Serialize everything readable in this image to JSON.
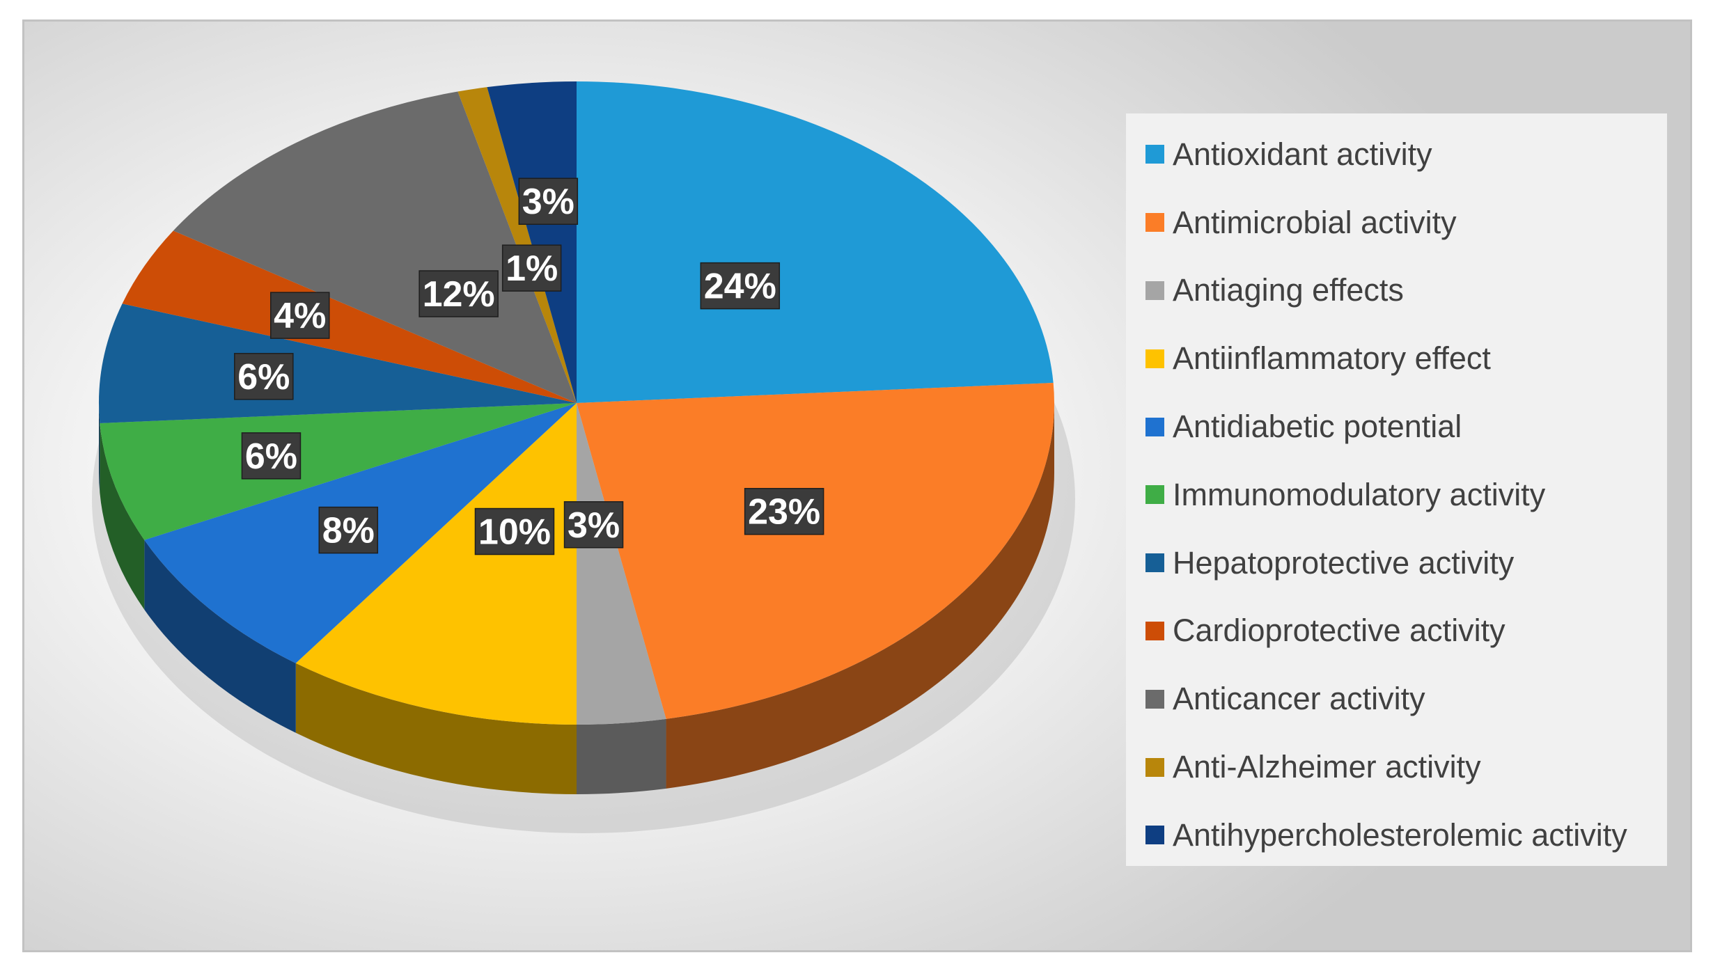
{
  "chart_data": {
    "type": "pie",
    "variant": "3d",
    "start_angle": "12 o'clock",
    "direction": "clockwise",
    "slices": [
      {
        "label": "Antioxidant activity",
        "value": 24,
        "value_label": "24%",
        "color": "#1f9ad6"
      },
      {
        "label": "Antimicrobial activity",
        "value": 23,
        "value_label": "23%",
        "color": "#fb7d27"
      },
      {
        "label": "Antiaging effects",
        "value": 3,
        "value_label": "3%",
        "color": "#a5a5a5"
      },
      {
        "label": "Antiinflammatory effect",
        "value": 10,
        "value_label": "10%",
        "color": "#fec200"
      },
      {
        "label": "Antidiabetic potential",
        "value": 8,
        "value_label": "8%",
        "color": "#1f72d0"
      },
      {
        "label": "Immunomodulatory activity",
        "value": 6,
        "value_label": "6%",
        "color": "#3fad46"
      },
      {
        "label": "Hepatoprotective activity",
        "value": 6,
        "value_label": "6%",
        "color": "#165f96"
      },
      {
        "label": "Cardioprotective activity",
        "value": 4,
        "value_label": "4%",
        "color": "#cd4d06"
      },
      {
        "label": "Anticancer activity",
        "value": 12,
        "value_label": "12%",
        "color": "#6b6b6b"
      },
      {
        "label": "Anti-Alzheimer activity",
        "value": 1,
        "value_label": "1%",
        "color": "#b8860b"
      },
      {
        "label": "Antihypercholesterolemic activity",
        "value": 3,
        "value_label": "3%",
        "color": "#0e3e82"
      }
    ],
    "legend_position": "right"
  }
}
